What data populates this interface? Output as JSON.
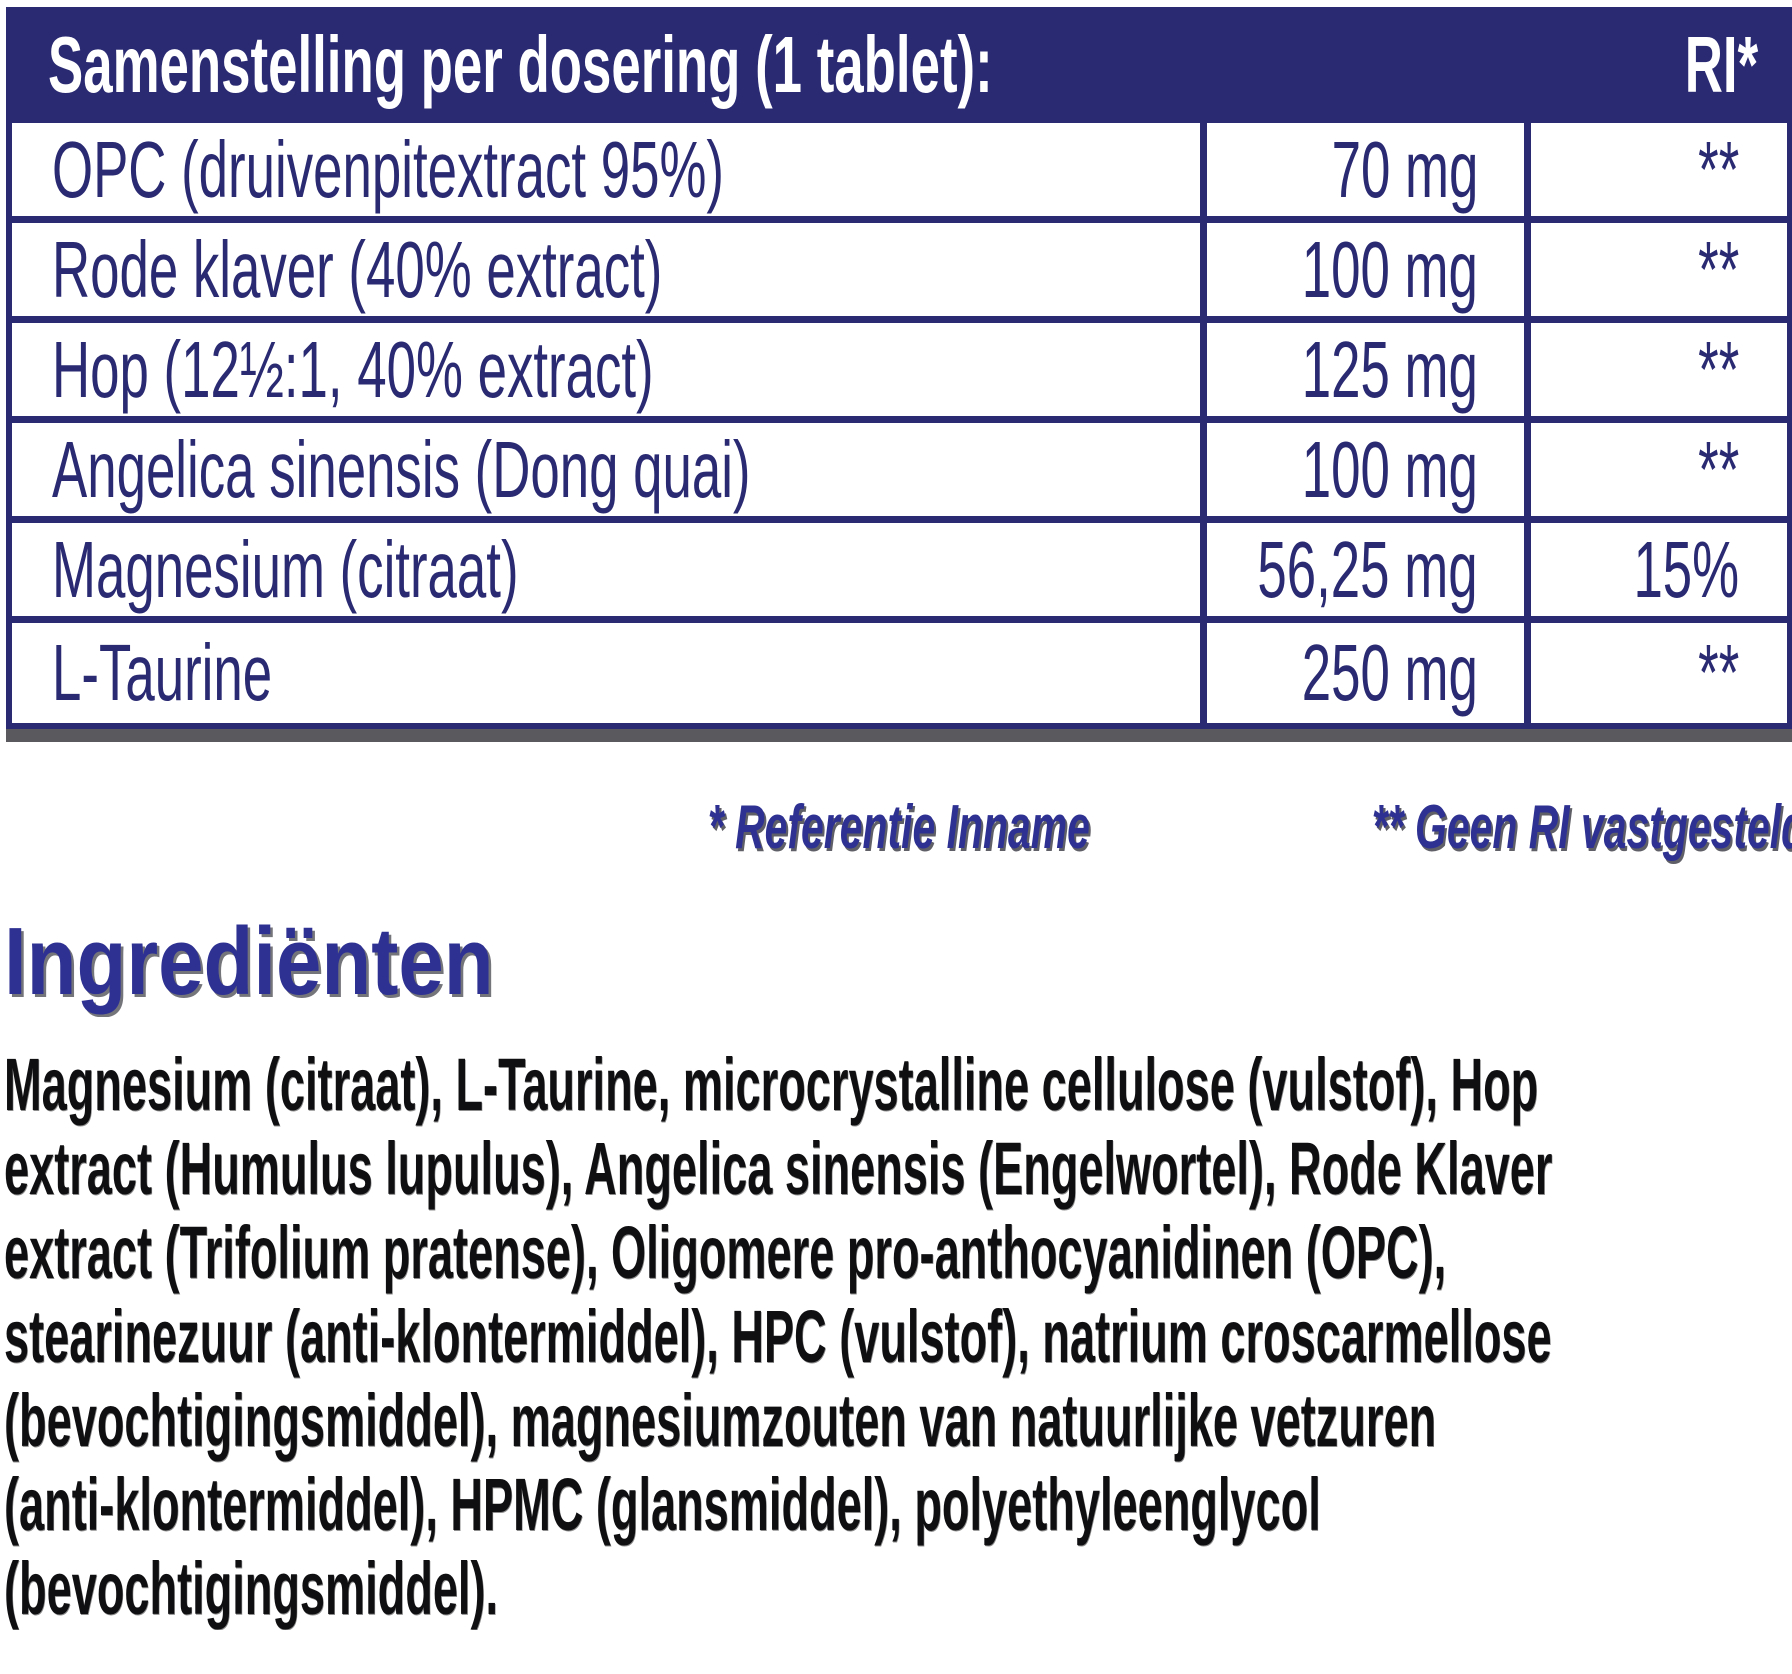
{
  "colors": {
    "navy": "#2a2a73",
    "header_bg": "#2a2a73",
    "blue": "#2e3192",
    "text_black": "#0f0f12",
    "shadow_gray": "#5a5a5e",
    "white": "#ffffff"
  },
  "table": {
    "header": {
      "title": "Samenstelling per dosering (1 tablet):",
      "ri_label": "RI*"
    },
    "rows": [
      {
        "name": "OPC (druivenpitextract 95%)",
        "amount": "70 mg",
        "ri": "**"
      },
      {
        "name": "Rode klaver (40% extract)",
        "amount": "100 mg",
        "ri": "**"
      },
      {
        "name": "Hop (12½:1, 40% extract)",
        "amount": "125 mg",
        "ri": "**"
      },
      {
        "name": "Angelica sinensis (Dong quai)",
        "amount": "100 mg",
        "ri": "**"
      },
      {
        "name": "Magnesium (citraat)",
        "amount": "56,25 mg",
        "ri": "15%"
      },
      {
        "name": "L-Taurine",
        "amount": "250 mg",
        "ri": "**"
      }
    ]
  },
  "footnotes": {
    "reference_intake": "* Referentie Inname",
    "no_ri": "** Geen RI vastgesteld"
  },
  "ingredients": {
    "heading": "Ingrediënten",
    "body": "Magnesium (citraat), L-Taurine, microcrystalline cellulose (vulstof), Hop extract (Humulus lupulus), Angelica sinensis (Engelwortel), Rode Klaver extract (Trifolium pratense), Oligomere pro-anthocyanidinen (OPC), stearinezuur (anti-klontermiddel), HPC (vulstof), natrium croscarmellose (bevochtigingsmiddel), magnesiumzouten van natuurlijke vetzuren (anti-klontermiddel), HPMC (glansmiddel), polyethyleenglycol (bevochtigingsmiddel)."
  }
}
